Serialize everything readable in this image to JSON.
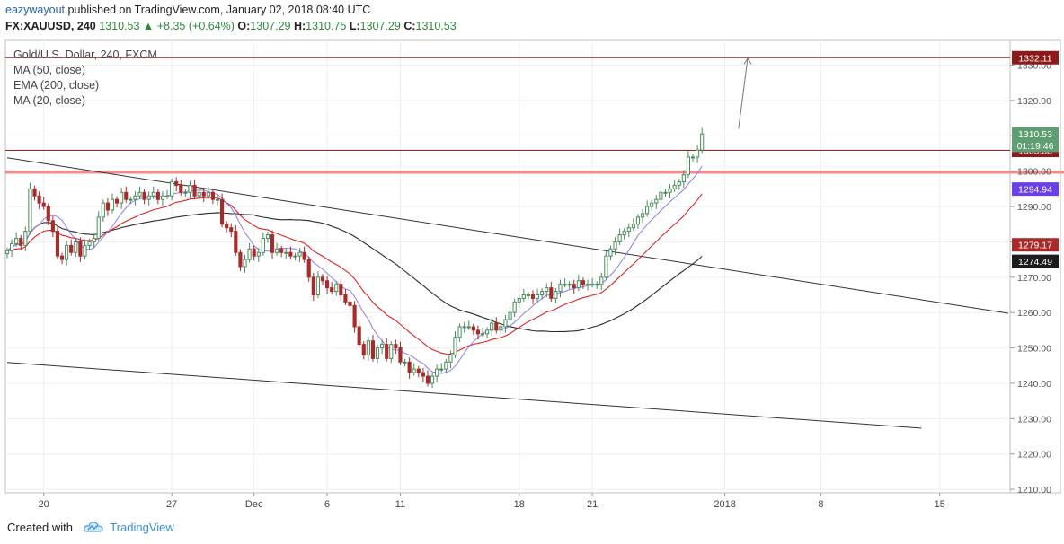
{
  "header": {
    "user": "eazywayout",
    "published_text": "published on TradingView.com, January 02, 2018 08:40 UTC",
    "symbol": "FX:XAUUSD, 240",
    "last": "1310.53",
    "change": "+8.35 (+0.64%)",
    "open_label": "O:",
    "open": "1307.29",
    "high_label": "H:",
    "high": "1310.75",
    "low_label": "L:",
    "low": "1307.29",
    "close_label": "C:",
    "close": "1310.53"
  },
  "legend": {
    "title": "Gold/U.S. Dollar, 240, FXCM",
    "items": [
      "MA (50, close)",
      "EMA (200, close)",
      "MA (20, close)"
    ]
  },
  "footer": {
    "created_with": "Created with",
    "brand": "TradingView"
  },
  "colors": {
    "up": "#4a8a5c",
    "down": "#a82b2b",
    "ma50": "#2a2a2a",
    "ema200": "#e02424",
    "ma20": "#8a7de8",
    "level_line": "#a02020",
    "support_zone": "#f08c8c",
    "trendline": "#333333"
  },
  "chart_data": {
    "type": "candlestick",
    "title": "Gold/U.S. Dollar, 240, FXCM",
    "y_range": [
      1209,
      1337
    ],
    "y_ticks": [
      1210,
      1220,
      1230,
      1240,
      1250,
      1260,
      1270,
      1280,
      1290,
      1300,
      1310,
      1320,
      1330
    ],
    "y_tick_labels": [
      "1210.00",
      "1220.00",
      "1230.00",
      "1240.00",
      "1250.00",
      "1260.00",
      "1270.00",
      "1280.00",
      "1290.00",
      "1300.00",
      "1310.00",
      "1320.00",
      "1330.00"
    ],
    "x_ticks": [
      {
        "label": "20",
        "bar": 8
      },
      {
        "label": "27",
        "bar": 36
      },
      {
        "label": "Dec",
        "bar": 54
      },
      {
        "label": "6",
        "bar": 70
      },
      {
        "label": "11",
        "bar": 86
      },
      {
        "label": "18",
        "bar": 112
      },
      {
        "label": "21",
        "bar": 128
      },
      {
        "label": "2018",
        "bar": 157
      },
      {
        "label": "8",
        "bar": 178
      },
      {
        "label": "15",
        "bar": 204
      }
    ],
    "bar_range": [
      0,
      219
    ],
    "closes": [
      1277.5,
      1279.5,
      1281,
      1279,
      1283,
      1295,
      1293,
      1291,
      1290,
      1286,
      1283,
      1276,
      1275,
      1279,
      1277,
      1280,
      1276,
      1279,
      1280,
      1281,
      1287,
      1291,
      1289,
      1292,
      1291,
      1294,
      1292,
      1292,
      1293,
      1294,
      1292,
      1293,
      1294,
      1292,
      1293,
      1293,
      1297,
      1296,
      1294,
      1294,
      1296,
      1293,
      1294,
      1293,
      1294,
      1292,
      1292,
      1285,
      1284,
      1283,
      1277,
      1273,
      1275,
      1278,
      1276,
      1277,
      1281,
      1282,
      1277,
      1278,
      1277,
      1277,
      1276,
      1276,
      1277,
      1275,
      1270,
      1265,
      1270,
      1269,
      1267,
      1266,
      1268,
      1265,
      1263,
      1262,
      1256,
      1251,
      1248,
      1252,
      1247,
      1250,
      1251,
      1247,
      1251,
      1250,
      1246,
      1246,
      1243,
      1244,
      1243,
      1242,
      1240,
      1242,
      1244,
      1244,
      1246,
      1248,
      1253,
      1256,
      1256,
      1256,
      1255,
      1254,
      1254,
      1255,
      1257,
      1255,
      1256,
      1258,
      1260,
      1263,
      1264,
      1265,
      1265,
      1264,
      1265,
      1266,
      1267,
      1264,
      1266,
      1268,
      1268,
      1268,
      1267,
      1269,
      1268,
      1268,
      1268,
      1268,
      1270,
      1276,
      1278,
      1280,
      1282,
      1283,
      1284,
      1285,
      1287,
      1288,
      1290,
      1291,
      1292,
      1294,
      1294,
      1295,
      1296,
      1297,
      1299,
      1304,
      1304,
      1306,
      1310.53
    ],
    "key_levels": [
      {
        "label": "1332.11",
        "value": 1332.11,
        "color": "#8b1a1a"
      },
      {
        "label": "1305.88",
        "value": 1305.88,
        "color": "#8b1a1a"
      }
    ],
    "support_zone": [
      1299.3,
      1300.2
    ],
    "price_badges": [
      {
        "label": "1310.53",
        "value": 1310.53,
        "color": "#5f9e72"
      },
      {
        "label": "01:19:46",
        "value": 1307.3,
        "color": "#5f9e72"
      },
      {
        "label": "1294.94",
        "value": 1294.94,
        "color": "#6b3fe8"
      },
      {
        "label": "1279.17",
        "value": 1279.17,
        "color": "#a82b2b"
      },
      {
        "label": "1274.49",
        "value": 1274.49,
        "color": "#1c1c1c"
      }
    ],
    "trendlines": [
      {
        "from": [
          0,
          1303.8
        ],
        "to": [
          219,
          1259.8
        ]
      },
      {
        "from": [
          0,
          1245.9
        ],
        "to": [
          200,
          1227.3
        ]
      }
    ],
    "arrow": {
      "from": [
        160,
        1312
      ],
      "to": [
        162,
        1332
      ]
    }
  }
}
